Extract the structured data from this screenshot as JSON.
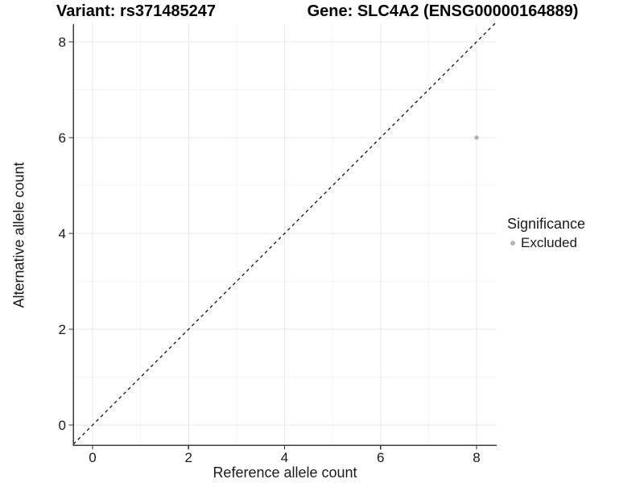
{
  "figure": {
    "title_left": "Variant: rs371485247",
    "title_right": "Gene: SLC4A2 (ENSG00000164889)"
  },
  "chart_data": {
    "type": "scatter",
    "title_left": "Variant: rs371485247",
    "title_right": "Gene: SLC4A2 (ENSG00000164889)",
    "xlabel": "Reference allele count",
    "ylabel": "Alternative allele count",
    "xlim": [
      -0.4,
      8.4
    ],
    "ylim": [
      -0.4,
      8.4
    ],
    "xticks": [
      0,
      2,
      4,
      6,
      8
    ],
    "yticks": [
      0,
      2,
      4,
      6,
      8
    ],
    "minor_xticks": [
      1,
      3,
      5,
      7
    ],
    "minor_yticks": [
      1,
      3,
      5,
      7
    ],
    "grid": "major+minor",
    "series": [
      {
        "name": "Excluded",
        "color": "#b4b4b4",
        "points": [
          {
            "x": 8,
            "y": 6
          }
        ]
      }
    ],
    "reference_line": {
      "type": "identity",
      "style": "dashed",
      "color": "#000000"
    },
    "legend": {
      "title": "Significance",
      "position": "right",
      "entries": [
        {
          "label": "Excluded",
          "color": "#b4b4b4"
        }
      ]
    }
  },
  "colors": {
    "background": "#ffffff",
    "grid_major": "#e8e8e8",
    "grid_minor": "#f4f4f4",
    "axis_line": "#3d3d3d",
    "tick_mark": "#333333",
    "tick_text": "#1a1a1a",
    "point": "#b4b4b4"
  }
}
